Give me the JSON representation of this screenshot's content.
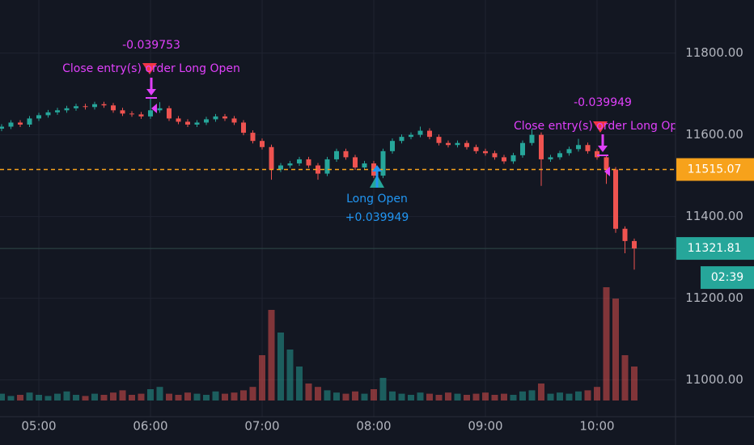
{
  "chart_data": {
    "type": "candlestick",
    "x": [
      "04:40",
      "04:45",
      "04:50",
      "04:55",
      "05:00",
      "05:05",
      "05:10",
      "05:15",
      "05:20",
      "05:25",
      "05:30",
      "05:35",
      "05:40",
      "05:45",
      "05:50",
      "05:55",
      "06:00",
      "06:05",
      "06:10",
      "06:15",
      "06:20",
      "06:25",
      "06:30",
      "06:35",
      "06:40",
      "06:45",
      "06:50",
      "06:55",
      "07:00",
      "07:05",
      "07:10",
      "07:15",
      "07:20",
      "07:25",
      "07:30",
      "07:35",
      "07:40",
      "07:45",
      "07:50",
      "07:55",
      "08:00",
      "08:05",
      "08:10",
      "08:15",
      "08:20",
      "08:25",
      "08:30",
      "08:35",
      "08:40",
      "08:45",
      "08:50",
      "08:55",
      "09:00",
      "09:05",
      "09:10",
      "09:15",
      "09:20",
      "09:25",
      "09:30",
      "09:35",
      "09:40",
      "09:45",
      "09:50",
      "09:55",
      "10:00",
      "10:05",
      "10:10",
      "10:15",
      "10:20"
    ],
    "open": [
      11615,
      11620,
      11630,
      11625,
      11640,
      11648,
      11655,
      11660,
      11665,
      11670,
      11668,
      11675,
      11672,
      11660,
      11652,
      11650,
      11645,
      11660,
      11665,
      11640,
      11632,
      11625,
      11630,
      11638,
      11645,
      11640,
      11630,
      11605,
      11585,
      11570,
      11515,
      11525,
      11530,
      11540,
      11525,
      11505,
      11540,
      11560,
      11545,
      11520,
      11530,
      11500,
      11560,
      11585,
      11595,
      11600,
      11610,
      11595,
      11580,
      11575,
      11580,
      11570,
      11560,
      11555,
      11545,
      11535,
      11550,
      11580,
      11600,
      11540,
      11545,
      11555,
      11565,
      11575,
      11560,
      11545,
      11515,
      11370,
      11340
    ],
    "high": [
      11626,
      11636,
      11636,
      11646,
      11654,
      11661,
      11666,
      11671,
      11676,
      11676,
      11681,
      11681,
      11678,
      11666,
      11658,
      11656,
      11690,
      11680,
      11671,
      11646,
      11638,
      11636,
      11644,
      11651,
      11651,
      11646,
      11636,
      11611,
      11591,
      11576,
      11531,
      11536,
      11546,
      11546,
      11531,
      11546,
      11566,
      11566,
      11551,
      11536,
      11536,
      11566,
      11591,
      11601,
      11606,
      11620,
      11616,
      11601,
      11586,
      11586,
      11586,
      11576,
      11566,
      11561,
      11551,
      11556,
      11586,
      11615,
      11606,
      11551,
      11561,
      11571,
      11590,
      11581,
      11566,
      11551,
      11521,
      11376,
      11346
    ],
    "low": [
      11609,
      11614,
      11619,
      11619,
      11634,
      11642,
      11649,
      11654,
      11659,
      11662,
      11662,
      11666,
      11654,
      11646,
      11644,
      11639,
      11639,
      11654,
      11634,
      11626,
      11619,
      11619,
      11624,
      11632,
      11634,
      11624,
      11599,
      11579,
      11564,
      11490,
      11509,
      11519,
      11524,
      11519,
      11490,
      11499,
      11534,
      11539,
      11514,
      11514,
      11494,
      11494,
      11554,
      11579,
      11589,
      11594,
      11589,
      11574,
      11569,
      11569,
      11564,
      11554,
      11549,
      11539,
      11529,
      11529,
      11544,
      11574,
      11475,
      11534,
      11539,
      11549,
      11559,
      11554,
      11539,
      11480,
      11360,
      11310,
      11270
    ],
    "close": [
      11620,
      11630,
      11625,
      11640,
      11648,
      11655,
      11660,
      11665,
      11670,
      11668,
      11675,
      11672,
      11660,
      11652,
      11650,
      11645,
      11660,
      11665,
      11640,
      11632,
      11625,
      11630,
      11638,
      11645,
      11640,
      11630,
      11605,
      11585,
      11570,
      11515,
      11525,
      11530,
      11540,
      11525,
      11505,
      11540,
      11560,
      11545,
      11520,
      11530,
      11500,
      11560,
      11585,
      11595,
      11600,
      11610,
      11595,
      11580,
      11575,
      11580,
      11570,
      11560,
      11555,
      11545,
      11535,
      11550,
      11580,
      11600,
      11540,
      11545,
      11555,
      11565,
      11575,
      11560,
      11545,
      11515,
      11370,
      11340,
      11321.81
    ],
    "volume": [
      6,
      4,
      5,
      7,
      5,
      4,
      6,
      8,
      5,
      4,
      6,
      5,
      7,
      9,
      5,
      6,
      10,
      12,
      6,
      5,
      7,
      6,
      5,
      8,
      6,
      7,
      9,
      12,
      40,
      80,
      60,
      45,
      30,
      15,
      12,
      9,
      7,
      6,
      8,
      6,
      10,
      20,
      8,
      6,
      5,
      7,
      6,
      5,
      7,
      6,
      5,
      6,
      7,
      5,
      6,
      5,
      8,
      9,
      15,
      6,
      7,
      6,
      8,
      9,
      12,
      100,
      90,
      40,
      30
    ],
    "up_color": "#26a69a",
    "down_color": "#ef5350",
    "ylim": [
      10910,
      11930
    ],
    "yticks": [
      {
        "value": 11000,
        "label": "11000.00"
      },
      {
        "value": 11200,
        "label": "11200.00"
      },
      {
        "value": 11400,
        "label": "11400.00"
      },
      {
        "value": 11600,
        "label": "11600.00"
      },
      {
        "value": 11800,
        "label": "11800.00"
      }
    ],
    "xticks": [
      "05:00",
      "06:00",
      "07:00",
      "08:00",
      "09:00",
      "10:00"
    ],
    "grid": true,
    "position_line": {
      "value": 11515.07,
      "color": "#f7a21b"
    },
    "last_price": 11321.81,
    "countdown": "02:39",
    "annotations": [
      {
        "pnl": "-0.039753",
        "text": "Close entry(s) order Long Open",
        "color": "#e040fb"
      },
      {
        "text": "Long Open",
        "pnl": "+0.039949",
        "color": "#2196f3"
      },
      {
        "pnl": "-0.039949",
        "text": "Close entry(s) order Long Open",
        "color": "#e040fb"
      }
    ]
  }
}
